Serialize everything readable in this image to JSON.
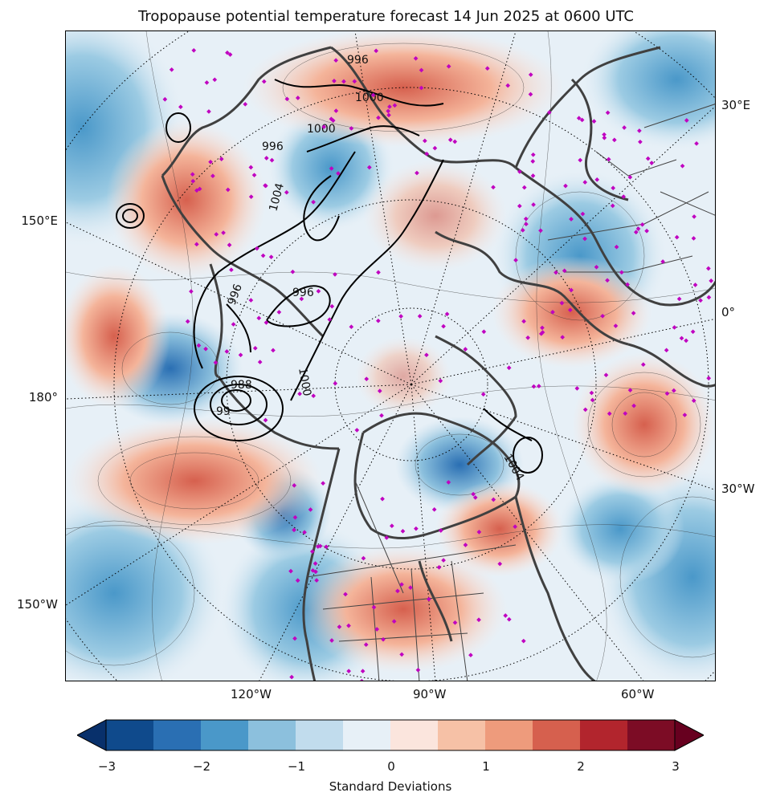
{
  "title": "Tropopause potential temperature forecast 14 Jun 2025 at 0600 UTC",
  "map": {
    "projection": "north polar stereographic",
    "lon_labels_right": [
      "30°E",
      "0°",
      "30°W"
    ],
    "lon_labels_left": [
      "150°E",
      "180°",
      "150°W"
    ],
    "lon_labels_bottom": [
      "120°W",
      "90°W",
      "60°W"
    ],
    "contour_labels": [
      "996",
      "1000",
      "996",
      "1004",
      "996",
      "1000",
      "988",
      "99",
      "1004",
      "996",
      "1000"
    ],
    "colors": {
      "negative_dark": "#0d4a8c",
      "negative_light": "#e3eef6",
      "positive_light": "#fbe5de",
      "positive_dark": "#6d0d22",
      "coastline": "#404040",
      "station_marker": "#c000c0"
    }
  },
  "colorbar": {
    "label": "Standard Deviations",
    "ticks": [
      "−3",
      "−2",
      "−1",
      "0",
      "1",
      "2",
      "3"
    ],
    "bins": [
      "#0f4a8c",
      "#2a6fb3",
      "#4a98c9",
      "#8cc0dd",
      "#c1dced",
      "#e7f0f7",
      "#fbe5dd",
      "#f6c1a6",
      "#ee9b7c",
      "#d6604e",
      "#b2252d",
      "#7c0c25"
    ],
    "extend_low": "#08306b",
    "extend_high": "#67001f"
  }
}
